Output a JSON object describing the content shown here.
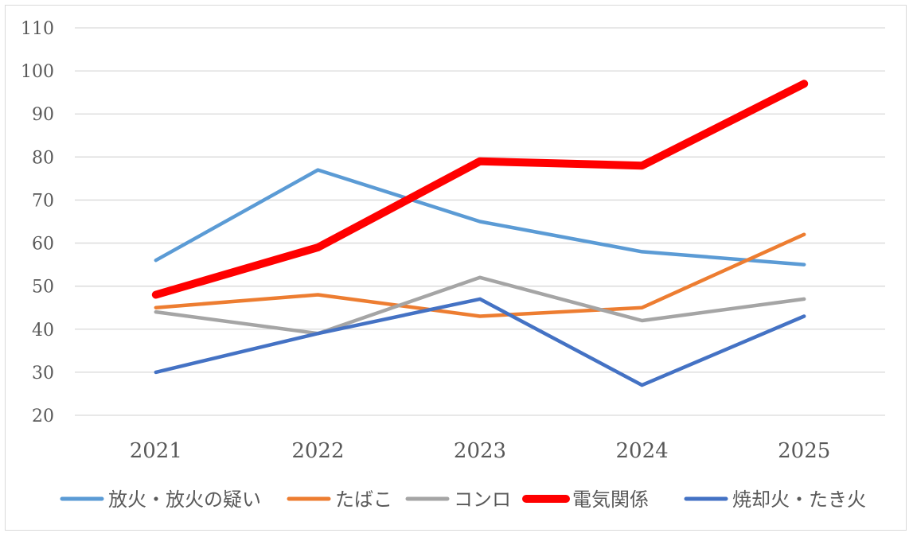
{
  "chart_data": {
    "type": "line",
    "title": "",
    "xlabel": "",
    "ylabel": "",
    "x": [
      "2021",
      "2022",
      "2023",
      "2024",
      "2025"
    ],
    "ylim": [
      20,
      110
    ],
    "yticks": [
      20,
      30,
      40,
      50,
      60,
      70,
      80,
      90,
      100,
      110
    ],
    "grid": true,
    "legend_position": "bottom",
    "series": [
      {
        "name": "放火・放火の疑い",
        "values": [
          56,
          77,
          65,
          58,
          55
        ],
        "color": "#5b9bd5",
        "width": "normal"
      },
      {
        "name": "たばこ",
        "values": [
          45,
          48,
          43,
          45,
          62
        ],
        "color": "#ed7d31",
        "width": "normal"
      },
      {
        "name": "コンロ",
        "values": [
          44,
          39,
          52,
          42,
          47
        ],
        "color": "#a5a5a5",
        "width": "normal"
      },
      {
        "name": "電気関係",
        "values": [
          48,
          59,
          79,
          78,
          97
        ],
        "color": "#ff0000",
        "width": "bold"
      },
      {
        "name": "焼却火・たき火",
        "values": [
          30,
          39,
          47,
          27,
          43
        ],
        "color": "#4472c4",
        "width": "normal"
      }
    ]
  }
}
